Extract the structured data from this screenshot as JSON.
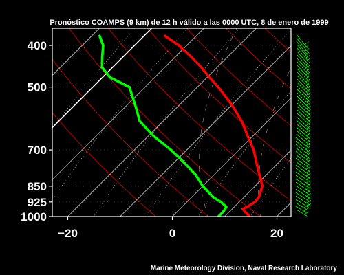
{
  "title": "Pronóstico COAMPS (9 km) de 12 h válido a las 0000 UTC, 8 de enero de 1999",
  "credit": "Marine Meteorology Division, Naval Research Laboratory",
  "colors": {
    "background": "#000000",
    "temperature": "#ff0000",
    "dewpoint": "#00ff00",
    "isotherm": "#ffffff",
    "dry_adiabat": "#cc0000",
    "mixing_ratio": "#ffffff",
    "wind_barb": "#00ff00"
  },
  "chart_data": {
    "type": "skew-t",
    "title": "Pronóstico COAMPS (9 km) de 12 h válido a las 0000 UTC, 8 de enero de 1999",
    "xlabel": "",
    "ylabel": "",
    "x_unit": "°C",
    "y_unit": "hPa",
    "y_scale": "log",
    "y_ticks": [
      400,
      500,
      700,
      850,
      925,
      1000
    ],
    "x_ticks": [
      -20,
      0,
      20
    ],
    "xlim": [
      -23,
      23
    ],
    "ylim": [
      1000,
      375
    ],
    "isotherms_c": [
      -60,
      -50,
      -40,
      -30,
      -20,
      -10,
      0,
      10,
      20,
      30
    ],
    "series": [
      {
        "key": "temperature",
        "pressure": [
          1000,
          975,
          960,
          950,
          925,
          900,
          850,
          800,
          750,
          700,
          650,
          600,
          550,
          500,
          475,
          450,
          425,
          400,
          380
        ],
        "values": [
          14.8,
          13.0,
          12.0,
          12.4,
          13.0,
          12.8,
          11.4,
          8.7,
          5.8,
          2.8,
          -1.0,
          -5.0,
          -10.0,
          -16.0,
          -19.5,
          -23.0,
          -27.0,
          -31.5,
          -36.0
        ]
      },
      {
        "key": "dewpoint",
        "pressure": [
          1000,
          975,
          950,
          925,
          900,
          850,
          800,
          750,
          700,
          650,
          600,
          550,
          500,
          475,
          450,
          425,
          400,
          380
        ],
        "values": [
          8.8,
          8.8,
          8.5,
          6.5,
          4.0,
          0.0,
          -3.5,
          -8.0,
          -13.0,
          -19.0,
          -24.5,
          -28.5,
          -33.0,
          -38.5,
          -42.0,
          -44.0,
          -46.0,
          -48.5
        ]
      }
    ],
    "grid": true,
    "legend": "none"
  }
}
